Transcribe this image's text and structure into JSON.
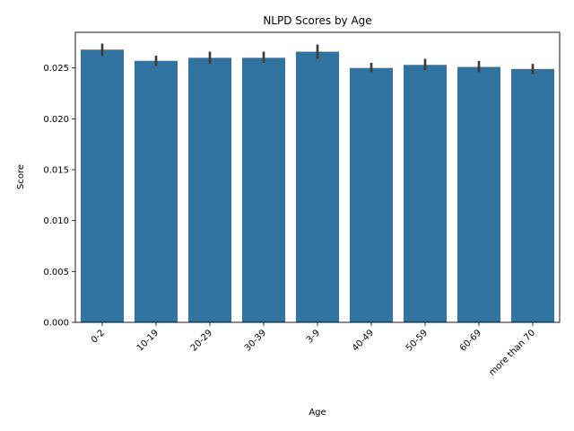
{
  "chart_data": {
    "type": "bar",
    "title": "NLPD Scores by Age",
    "xlabel": "Age",
    "ylabel": "Score",
    "categories": [
      "0-2",
      "10-19",
      "20-29",
      "30-39",
      "3-9",
      "40-49",
      "50-59",
      "60-69",
      "more than 70"
    ],
    "values": [
      0.0268,
      0.0257,
      0.026,
      0.026,
      0.0266,
      0.025,
      0.0253,
      0.0251,
      0.0249
    ],
    "error_low": [
      0.0262,
      0.0252,
      0.0254,
      0.0255,
      0.0259,
      0.0246,
      0.0248,
      0.0246,
      0.0244
    ],
    "error_high": [
      0.0274,
      0.0262,
      0.0266,
      0.0266,
      0.0273,
      0.0255,
      0.0259,
      0.0257,
      0.0254
    ],
    "ylim": [
      0,
      0.0285
    ],
    "yticks": [
      "0.000",
      "0.005",
      "0.010",
      "0.015",
      "0.020",
      "0.025"
    ],
    "ytick_values": [
      0,
      0.005,
      0.01,
      0.015,
      0.02,
      0.025
    ],
    "grid": false,
    "bar_color": "#3274a1",
    "error_color": "#3d3d3d"
  }
}
